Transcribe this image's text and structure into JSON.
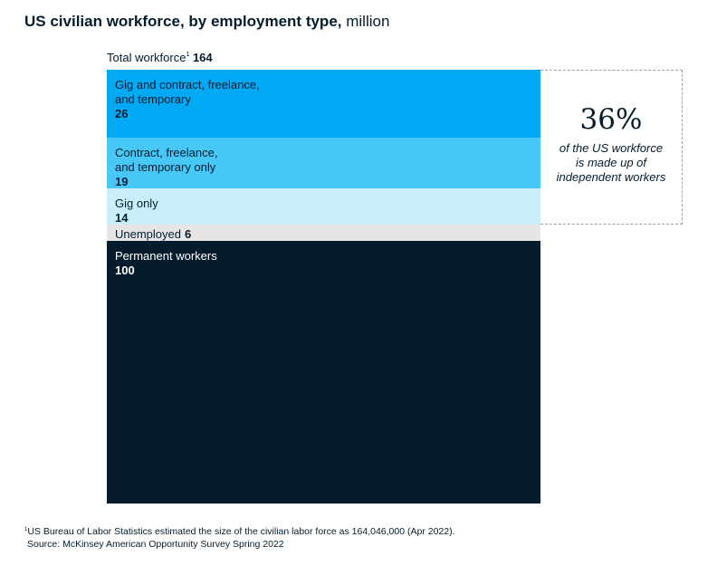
{
  "title": {
    "bold": "US civilian workforce, by employment type,",
    "unit": "million"
  },
  "total": {
    "label": "Total workforce",
    "footnote_mark": "1",
    "value": "164"
  },
  "callout": {
    "percent": "36%",
    "text": "of the US workforce\nis made up of\nindependent workers"
  },
  "footnote": {
    "mark": "1",
    "text": "US Bureau of Labor Statistics estimated the size of the civilian labor force as 164,046,000 (Apr 2022).",
    "source": "Source: McKinsey American Opportunity Survey Spring 2022"
  },
  "colors": {
    "gig_and_contract": "#00a9f4",
    "contract_only": "#47c8f8",
    "gig_only": "#c9eefc",
    "unemployed": "#e6e6e6",
    "permanent": "#051c2c",
    "text_dark": "#051c2c"
  },
  "chart_data": {
    "type": "bar",
    "stacked": true,
    "total": 164,
    "unit": "million",
    "categories": [
      "Gig and contract, freelance,\nand temporary",
      "Contract, freelance,\nand temporary only",
      "Gig only",
      "Unemployed",
      "Permanent workers"
    ],
    "values": [
      26,
      19,
      14,
      6,
      100
    ],
    "value_labels": [
      "26",
      "19",
      "14",
      "6",
      "100"
    ],
    "color_keys": [
      "gig_and_contract",
      "contract_only",
      "gig_only",
      "unemployed",
      "permanent"
    ],
    "label_colors": [
      "#051c2c",
      "#051c2c",
      "#051c2c",
      "#051c2c",
      "#ffffff"
    ],
    "inline_label": [
      false,
      false,
      false,
      true,
      false
    ]
  }
}
